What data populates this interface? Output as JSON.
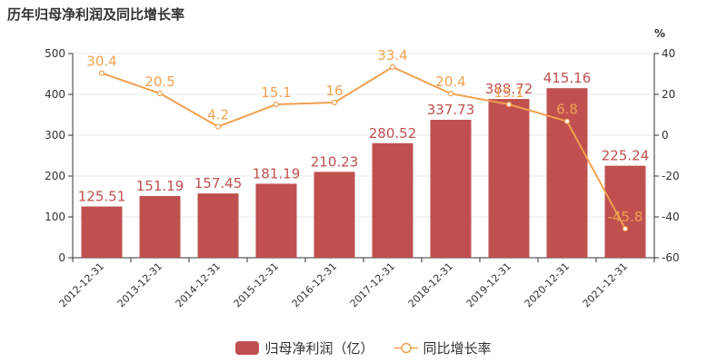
{
  "title": "历年归母净利润及同比增长率",
  "colors": {
    "bar": "#c05050",
    "line": "#f0a050",
    "axis": "#333333",
    "grid": "#e8e8e8"
  },
  "chart_data": {
    "type": "bar",
    "title": "历年归母净利润及同比增长率",
    "categories": [
      "2012-12-31",
      "2013-12-31",
      "2014-12-31",
      "2015-12-31",
      "2016-12-31",
      "2017-12-31",
      "2018-12-31",
      "2019-12-31",
      "2020-12-31",
      "2021-12-31"
    ],
    "series": [
      {
        "name": "归母净利润（亿）",
        "type": "bar",
        "axis": "left",
        "values": [
          125.51,
          151.19,
          157.45,
          181.19,
          210.23,
          280.52,
          337.73,
          388.72,
          415.16,
          225.24
        ]
      },
      {
        "name": "同比增长率",
        "type": "line",
        "axis": "right",
        "values": [
          30.4,
          20.5,
          4.2,
          15.1,
          16,
          33.4,
          20.4,
          15.1,
          6.8,
          -45.8
        ]
      }
    ],
    "y_left": {
      "min": 0,
      "max": 500,
      "ticks": [
        0,
        100,
        200,
        300,
        400,
        500
      ]
    },
    "y_right": {
      "min": -60,
      "max": 40,
      "ticks": [
        -60,
        -40,
        -20,
        0,
        20,
        40
      ],
      "unit": "%"
    },
    "grid": true,
    "legend_position": "bottom-center"
  }
}
